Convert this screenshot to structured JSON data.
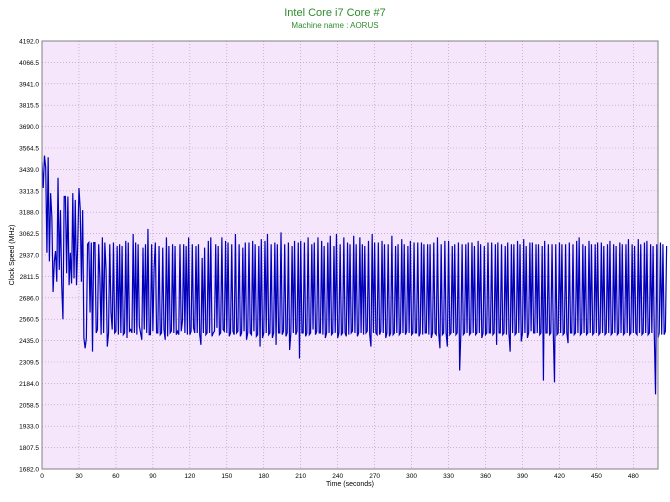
{
  "chart_data": {
    "type": "line",
    "title": "Intel Core i7 Core #7",
    "subtitle": "Machine name : AORUS",
    "xlabel": "Time (seconds)",
    "ylabel": "Clock Speed (MHz)",
    "xlim": [
      0,
      500
    ],
    "ylim": [
      1682.0,
      4192.0
    ],
    "x_ticks": [
      0,
      30,
      60,
      90,
      120,
      150,
      180,
      210,
      240,
      270,
      300,
      330,
      360,
      390,
      420,
      450,
      480
    ],
    "y_ticks": [
      1682.0,
      1807.5,
      1933.0,
      2058.5,
      2184.0,
      2309.5,
      2435.0,
      2560.5,
      2686.0,
      2811.5,
      2937.0,
      3062.5,
      3188.0,
      3313.5,
      3439.0,
      3564.5,
      3690.0,
      3815.5,
      3941.0,
      4066.5,
      4192.0
    ],
    "grid": true,
    "colors": {
      "line": "#0000bb",
      "plot_background": "#f6e6fb",
      "grid": "#b88ec4",
      "title": "#2e8b2e"
    },
    "series": [
      {
        "values_note": "clock speed sampled every 1 second",
        "x_start": 0,
        "x_step": 1,
        "values": [
          3480,
          3330,
          3520,
          3450,
          2950,
          3510,
          2900,
          3300,
          3160,
          2720,
          2900,
          2960,
          2780,
          3390,
          2850,
          3200,
          2760,
          2560,
          3280,
          3280,
          2830,
          3280,
          2760,
          2950,
          2770,
          3300,
          2800,
          3260,
          2760,
          3000,
          3330,
          3210,
          2780,
          3200,
          2450,
          2390,
          2450,
          3000,
          3010,
          2600,
          3010,
          2370,
          3010,
          3010,
          2480,
          2500,
          3000,
          2800,
          2470,
          3040,
          2480,
          3010,
          2850,
          2400,
          2480,
          3000,
          2600,
          2500,
          3010,
          2480,
          2490,
          2990,
          2470,
          3000,
          2480,
          2990,
          2470,
          2480,
          3020,
          2450,
          3010,
          2490,
          2500,
          2480,
          3060,
          2480,
          3010,
          2470,
          3000,
          2520,
          2480,
          2440,
          2980,
          2500,
          3000,
          2480,
          3090,
          2470,
          2470,
          3000,
          2490,
          2860,
          3010,
          2480,
          2480,
          2990,
          2470,
          2480,
          2980,
          2500,
          2440,
          3040,
          2460,
          2990,
          2480,
          2490,
          3000,
          2480,
          2990,
          2470,
          2490,
          2470,
          3000,
          2490,
          2550,
          3000,
          2480,
          2990,
          2470,
          3040,
          2470,
          2490,
          3000,
          2510,
          2480,
          2990,
          2480,
          3000,
          2470,
          2410,
          2920,
          2480,
          2980,
          2470,
          2480,
          3020,
          2480,
          3040,
          2460,
          2480,
          2490,
          3000,
          2510,
          2990,
          2470,
          2480,
          3040,
          2500,
          2490,
          3020,
          2480,
          3010,
          2460,
          2480,
          3000,
          2490,
          2470,
          3060,
          2480,
          2490,
          3000,
          2460,
          2480,
          2980,
          2490,
          3010,
          2440,
          2480,
          3010,
          2480,
          2470,
          3020,
          2490,
          3000,
          2460,
          2470,
          2990,
          2400,
          3030,
          2450,
          2480,
          3020,
          2480,
          3060,
          2470,
          2480,
          3000,
          2450,
          2480,
          3010,
          2410,
          3000,
          2480,
          2480,
          3070,
          2470,
          2490,
          3000,
          2460,
          2480,
          3010,
          2380,
          2480,
          2990,
          2480,
          3020,
          2470,
          2490,
          3010,
          2330,
          3020,
          2480,
          2480,
          3010,
          2460,
          2480,
          3040,
          2470,
          2480,
          3000,
          2500,
          3010,
          2470,
          2490,
          3040,
          2480,
          2480,
          3020,
          2470,
          2990,
          2450,
          2480,
          3010,
          2480,
          3050,
          2470,
          2480,
          2990,
          2480,
          3060,
          2450,
          2480,
          3000,
          2470,
          2480,
          3040,
          2480,
          2460,
          3010,
          2470,
          3000,
          2480,
          2490,
          3050,
          2480,
          3000,
          2460,
          2480,
          3040,
          2480,
          3000,
          2470,
          2990,
          2480,
          2490,
          3020,
          2470,
          2400,
          3060,
          2480,
          3010,
          2480,
          2470,
          3010,
          2470,
          2490,
          3020,
          2480,
          3000,
          2450,
          2480,
          3000,
          2460,
          2480,
          3050,
          2470,
          2480,
          2990,
          2480,
          3000,
          2470,
          2480,
          3030,
          2480,
          3000,
          2470,
          2490,
          2990,
          2480,
          3020,
          2470,
          2480,
          3010,
          2480,
          2480,
          3010,
          2460,
          2480,
          3010,
          2470,
          3000,
          2480,
          2480,
          3000,
          2470,
          3000,
          2450,
          2480,
          3010,
          2480,
          2470,
          3040,
          2480,
          2390,
          3000,
          2470,
          2480,
          3020,
          2480,
          2400,
          3020,
          2470,
          2480,
          2990,
          2480,
          3000,
          2470,
          2480,
          3010,
          2260,
          2480,
          3000,
          2470,
          2480,
          3000,
          2480,
          3010,
          2470,
          2480,
          3010,
          2480,
          2990,
          2470,
          2480,
          3020,
          2480,
          3000,
          2450,
          2480,
          2990,
          2470,
          2480,
          3010,
          2480,
          2480,
          3010,
          2470,
          2480,
          3000,
          2410,
          3010,
          2480,
          2480,
          3000,
          2470,
          2480,
          2990,
          2470,
          3010,
          2480,
          2370,
          3000,
          2480,
          3000,
          2470,
          2480,
          3020,
          2480,
          3000,
          2430,
          2480,
          3030,
          2480,
          2990,
          2450,
          2480,
          3010,
          2490,
          3010,
          2480,
          2480,
          3000,
          2480,
          3000,
          2470,
          2480,
          2990,
          2200,
          3020,
          2480,
          2480,
          3000,
          2470,
          2480,
          3000,
          2480,
          2190,
          3000,
          2470,
          2480,
          3010,
          2480,
          3000,
          2470,
          2480,
          3000,
          2480,
          2420,
          3010,
          2480,
          2480,
          3000,
          2470,
          2480,
          3020,
          2480,
          3040,
          2470,
          2480,
          3000,
          2480,
          2990,
          2470,
          2480,
          3020,
          2480,
          3000,
          2470,
          2480,
          3000,
          2480,
          3010,
          2470,
          2480,
          3010,
          2480,
          2990,
          2470,
          2480,
          3000,
          2480,
          3020,
          2470,
          2480,
          3000,
          2480,
          2990,
          2470,
          2480,
          3010,
          2480,
          3000,
          2470,
          2480,
          3000,
          2480,
          3030,
          2470,
          2480,
          3000,
          2480,
          2990,
          2480,
          2470,
          3030,
          2480,
          3000,
          2470,
          2480,
          3010,
          2480,
          3020,
          2470,
          2480,
          3000,
          2480,
          2990,
          2470,
          2120,
          3000,
          2450,
          2480,
          3010,
          2470,
          3000,
          2470,
          2490,
          2990
        ]
      }
    ]
  }
}
